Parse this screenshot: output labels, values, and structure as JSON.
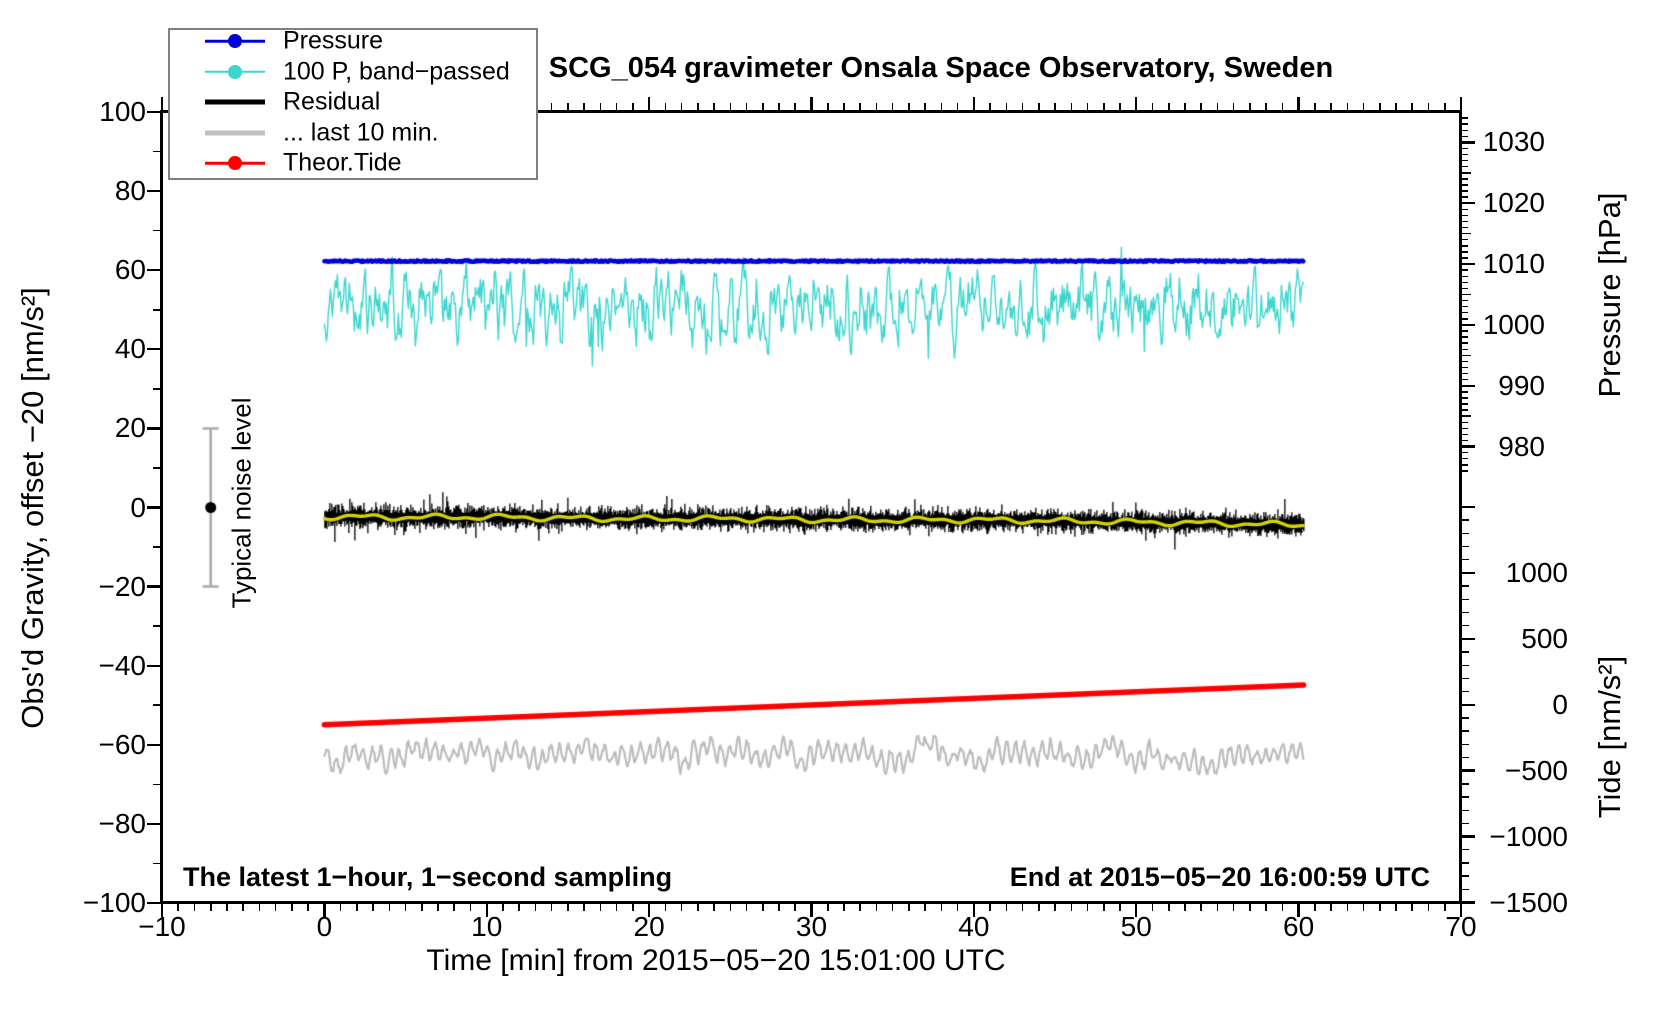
{
  "figure": {
    "title": "SCG_054 gravimeter Onsala Space Observatory, Sweden",
    "annotation_left": "The latest 1−hour, 1−second sampling",
    "annotation_right": "End at 2015−05−20 16:00:59 UTC",
    "background": "#ffffff"
  },
  "legend": {
    "items": [
      {
        "label": "Pressure",
        "color": "#0000dd",
        "dot": true,
        "thick": false
      },
      {
        "label": "100 P, band−passed",
        "color": "#3cd6ce",
        "dot": true,
        "thick": false
      },
      {
        "label": "Residual",
        "color": "#000000",
        "dot": false,
        "thick": true
      },
      {
        "label": "... last 10 min.",
        "color": "#c0c0c0",
        "dot": false,
        "thick": true
      },
      {
        "label": "Theor.Tide",
        "color": "#ff0000",
        "dot": true,
        "thick": false
      }
    ]
  },
  "axes": {
    "x": {
      "label": "Time [min] from 2015−05−20 15:01:00 UTC",
      "range": [
        -10,
        70
      ],
      "major_step": 10,
      "minor_step": 1,
      "major_values": [
        -10,
        0,
        10,
        20,
        30,
        40,
        50,
        60,
        70
      ],
      "tick_labels": [
        "−10",
        "0",
        "10",
        "20",
        "30",
        "40",
        "50",
        "60",
        "70"
      ]
    },
    "y_left": {
      "label": "Obs'd Gravity, offset −20 [nm/s²]",
      "range": [
        -100,
        100
      ],
      "major_step": 20,
      "minor_step": 10,
      "major_values": [
        100,
        80,
        60,
        40,
        20,
        0,
        -20,
        -40,
        -60,
        -80,
        -100
      ],
      "tick_labels": [
        "100",
        "80",
        "60",
        "40",
        "20",
        "0",
        "−20",
        "−40",
        "−60",
        "−80",
        "−100"
      ]
    },
    "pressure": {
      "label": "Pressure [hPa]",
      "range": [
        975,
        1035
      ],
      "major_step": 10,
      "minor_step": 1,
      "major_values": [
        1030,
        1020,
        1010,
        1000,
        990,
        980
      ],
      "tick_labels": [
        "1030",
        "1020",
        "1010",
        "1000",
        "990",
        "980"
      ]
    },
    "tide": {
      "label": "Tide [nm/s²]",
      "range": [
        -1500,
        1500
      ],
      "major_step": 500,
      "minor_step": 100,
      "major_values": [
        1000,
        500,
        0,
        -500,
        -1000,
        -1500
      ],
      "tick_labels": [
        "1000",
        "500",
        "0",
        "−500",
        "−1000",
        "−1500"
      ]
    }
  },
  "noise_marker": {
    "label": "Typical noise level",
    "t_min": -7,
    "value": 0,
    "error": 20,
    "bar_color": "#a9a9a9",
    "dot_color": "#000000"
  },
  "chart_data": {
    "type": "line",
    "title": "SCG_054 gravimeter Onsala Space Observatory, Sweden",
    "xlabel": "Time [min] from 2015-05-20 15:01:00 UTC",
    "x_start_min": 0,
    "x_end_min": 60.3,
    "grid": false,
    "legend_position": "top-left",
    "seed": 20150520,
    "series": [
      {
        "name": "Pressure",
        "axis": "pressure_hPa",
        "color": "#0000dd",
        "value_hPa": 1010.3,
        "gravity_axis_value": 62.3,
        "noise_hPa": 0.08,
        "width": 4.5
      },
      {
        "name": "100 P, band−passed",
        "axis": "gravity",
        "color": "#3cd6ce",
        "mean": 50.8,
        "typical_amplitude": 6,
        "max_excursion": 15,
        "width": 1.4
      },
      {
        "name": "Residual",
        "axis": "gravity",
        "color": "#000000",
        "mean_t_min": [
          0,
          5,
          10,
          15,
          20,
          25,
          30,
          35,
          40,
          45,
          50,
          55,
          60
        ],
        "mean_values": [
          -2.3,
          -2.5,
          -2.4,
          -2.7,
          -2.9,
          -2.8,
          -3.1,
          -3.2,
          -3.1,
          -3.4,
          -3.7,
          -4.0,
          -4.4
        ],
        "noise_envelope": 4,
        "spike_max": 7,
        "width": 1.3
      },
      {
        "name": "Residual smoothed",
        "axis": "gravity",
        "color": "#d4d400",
        "follows_series": "Residual",
        "wiggle_amplitude": 0.8,
        "width": 3.4
      },
      {
        "name": "... last 10 min.",
        "axis": "gravity",
        "color": "#bdbdbd",
        "mean": -62.6,
        "amplitude": 2.5,
        "period_min": 0.55,
        "width": 2.2
      },
      {
        "name": "Theor.Tide",
        "axis": "gravity",
        "color": "#ff0000",
        "points_t_min": [
          0,
          60.3
        ],
        "points_gravity_axis": [
          -54.9,
          -44.9
        ],
        "points_tide_axis": [
          -160,
          140
        ],
        "width": 5.5
      }
    ]
  }
}
